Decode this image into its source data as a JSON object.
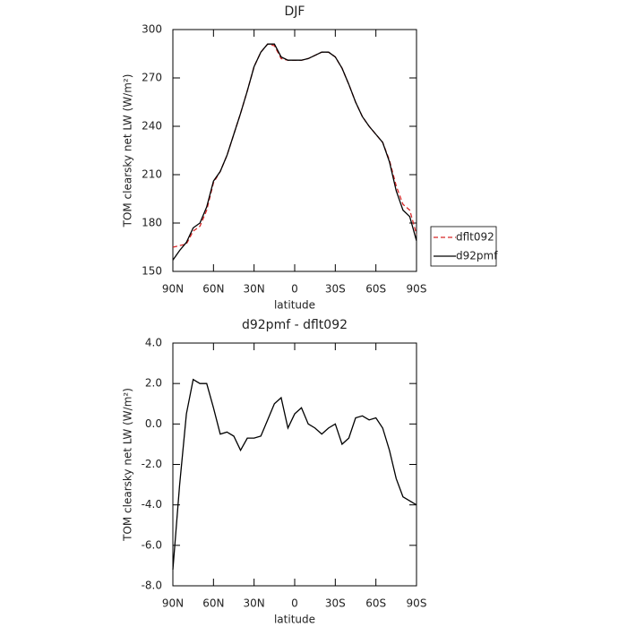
{
  "chart_data": [
    {
      "type": "line",
      "title": "DJF",
      "x_label": "latitude",
      "y_label": "TOM clearsky net LW (W/m²)",
      "x": [
        90,
        85,
        80,
        75,
        70,
        65,
        60,
        55,
        50,
        45,
        40,
        35,
        30,
        25,
        20,
        15,
        10,
        5,
        0,
        -5,
        -10,
        -15,
        -20,
        -25,
        -30,
        -35,
        -40,
        -45,
        -50,
        -55,
        -60,
        -65,
        -70,
        -75,
        -80,
        -85,
        -90
      ],
      "series": [
        {
          "name": "dflt092",
          "color": "#d62728",
          "dash": true,
          "values": [
            165,
            166,
            167,
            175,
            178,
            188,
            205,
            212,
            222,
            235,
            248,
            262,
            277,
            286,
            291,
            290,
            282,
            281,
            281,
            281,
            282,
            284,
            286,
            286,
            283,
            276,
            266,
            255,
            246,
            240,
            235,
            230,
            219,
            203,
            191.6,
            188,
            173
          ]
        },
        {
          "name": "d92pmf",
          "color": "#000000",
          "dash": false,
          "values": [
            157,
            163,
            168,
            177,
            180,
            190,
            206,
            212,
            222,
            235,
            248,
            262,
            277,
            286,
            291,
            291,
            283,
            281,
            281,
            281,
            282,
            284,
            286,
            286,
            283,
            276,
            266,
            255,
            246,
            240,
            235,
            230,
            218,
            200,
            188,
            184,
            169
          ]
        }
      ],
      "xlim": [
        90,
        -90
      ],
      "xticks": [
        {
          "value": 90,
          "label": "90N"
        },
        {
          "value": 60,
          "label": "60N"
        },
        {
          "value": 30,
          "label": "30N"
        },
        0,
        {
          "value": -30,
          "label": "30S"
        },
        {
          "value": -60,
          "label": "60S"
        },
        {
          "value": -90,
          "label": "90S"
        }
      ],
      "ylim": [
        150,
        300
      ],
      "yticks": [
        150,
        180,
        210,
        240,
        270,
        300
      ],
      "legend": "right"
    },
    {
      "type": "line",
      "title": "d92pmf - dflt092",
      "x_label": "latitude",
      "y_label": "TOM clearsky net LW (W/m²)",
      "x": [
        90,
        85,
        80,
        75,
        70,
        65,
        60,
        55,
        50,
        45,
        40,
        35,
        30,
        25,
        20,
        15,
        10,
        5,
        0,
        -5,
        -10,
        -15,
        -20,
        -25,
        -30,
        -35,
        -40,
        -45,
        -50,
        -55,
        -60,
        -65,
        -70,
        -75,
        -80,
        -85,
        -90
      ],
      "color": "#000000",
      "values": [
        -7.2,
        -3.0,
        0.5,
        2.2,
        2.0,
        2.0,
        0.8,
        -0.5,
        -0.4,
        -0.6,
        -1.3,
        -0.7,
        -0.7,
        -0.6,
        0.2,
        1.0,
        1.3,
        -0.2,
        0.5,
        0.8,
        0.0,
        -0.2,
        -0.5,
        -0.2,
        0.0,
        -1.0,
        -0.7,
        0.3,
        0.4,
        0.2,
        0.3,
        -0.2,
        -1.3,
        -2.7,
        -3.6,
        -3.8,
        -4.0
      ],
      "xlim": [
        90,
        -90
      ],
      "xticks": [
        {
          "value": 90,
          "label": "90N"
        },
        {
          "value": 60,
          "label": "60N"
        },
        {
          "value": 30,
          "label": "30N"
        },
        0,
        {
          "value": -30,
          "label": "30S"
        },
        {
          "value": -60,
          "label": "60S"
        },
        {
          "value": -90,
          "label": "90S"
        }
      ],
      "ylim": [
        -8,
        4
      ],
      "yticks": [
        {
          "value": 4,
          "label": "4.0"
        },
        {
          "value": 2,
          "label": "2.0"
        },
        {
          "value": 0,
          "label": "0.0"
        },
        {
          "value": -2,
          "label": "-2.0"
        },
        {
          "value": -4,
          "label": "-4.0"
        },
        {
          "value": -6,
          "label": "-6.0"
        },
        {
          "value": -8,
          "label": "-8.0"
        }
      ]
    }
  ]
}
